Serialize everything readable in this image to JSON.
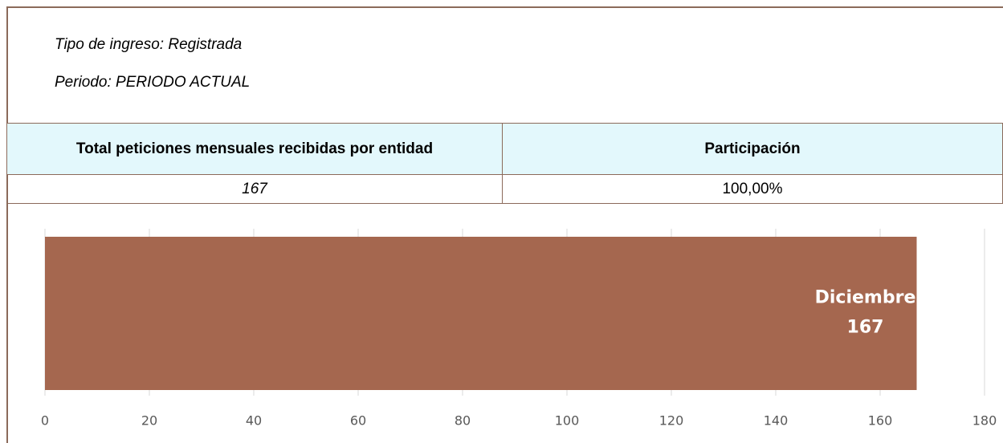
{
  "header": {
    "line1": "Tipo de ingreso: Registrada",
    "line2": "Periodo: PERIODO ACTUAL"
  },
  "table": {
    "columns": [
      "Total peticiones mensuales recibidas por entidad",
      "Participación"
    ],
    "rows": [
      [
        "167",
        "100,00%"
      ]
    ]
  },
  "chart_data": {
    "type": "bar",
    "orientation": "horizontal",
    "categories": [
      "Diciembre"
    ],
    "values": [
      167
    ],
    "color": "#a5674f",
    "xlim": [
      0,
      180
    ],
    "xticks": [
      0,
      20,
      40,
      60,
      80,
      100,
      120,
      140,
      160,
      180
    ],
    "grid": true
  }
}
